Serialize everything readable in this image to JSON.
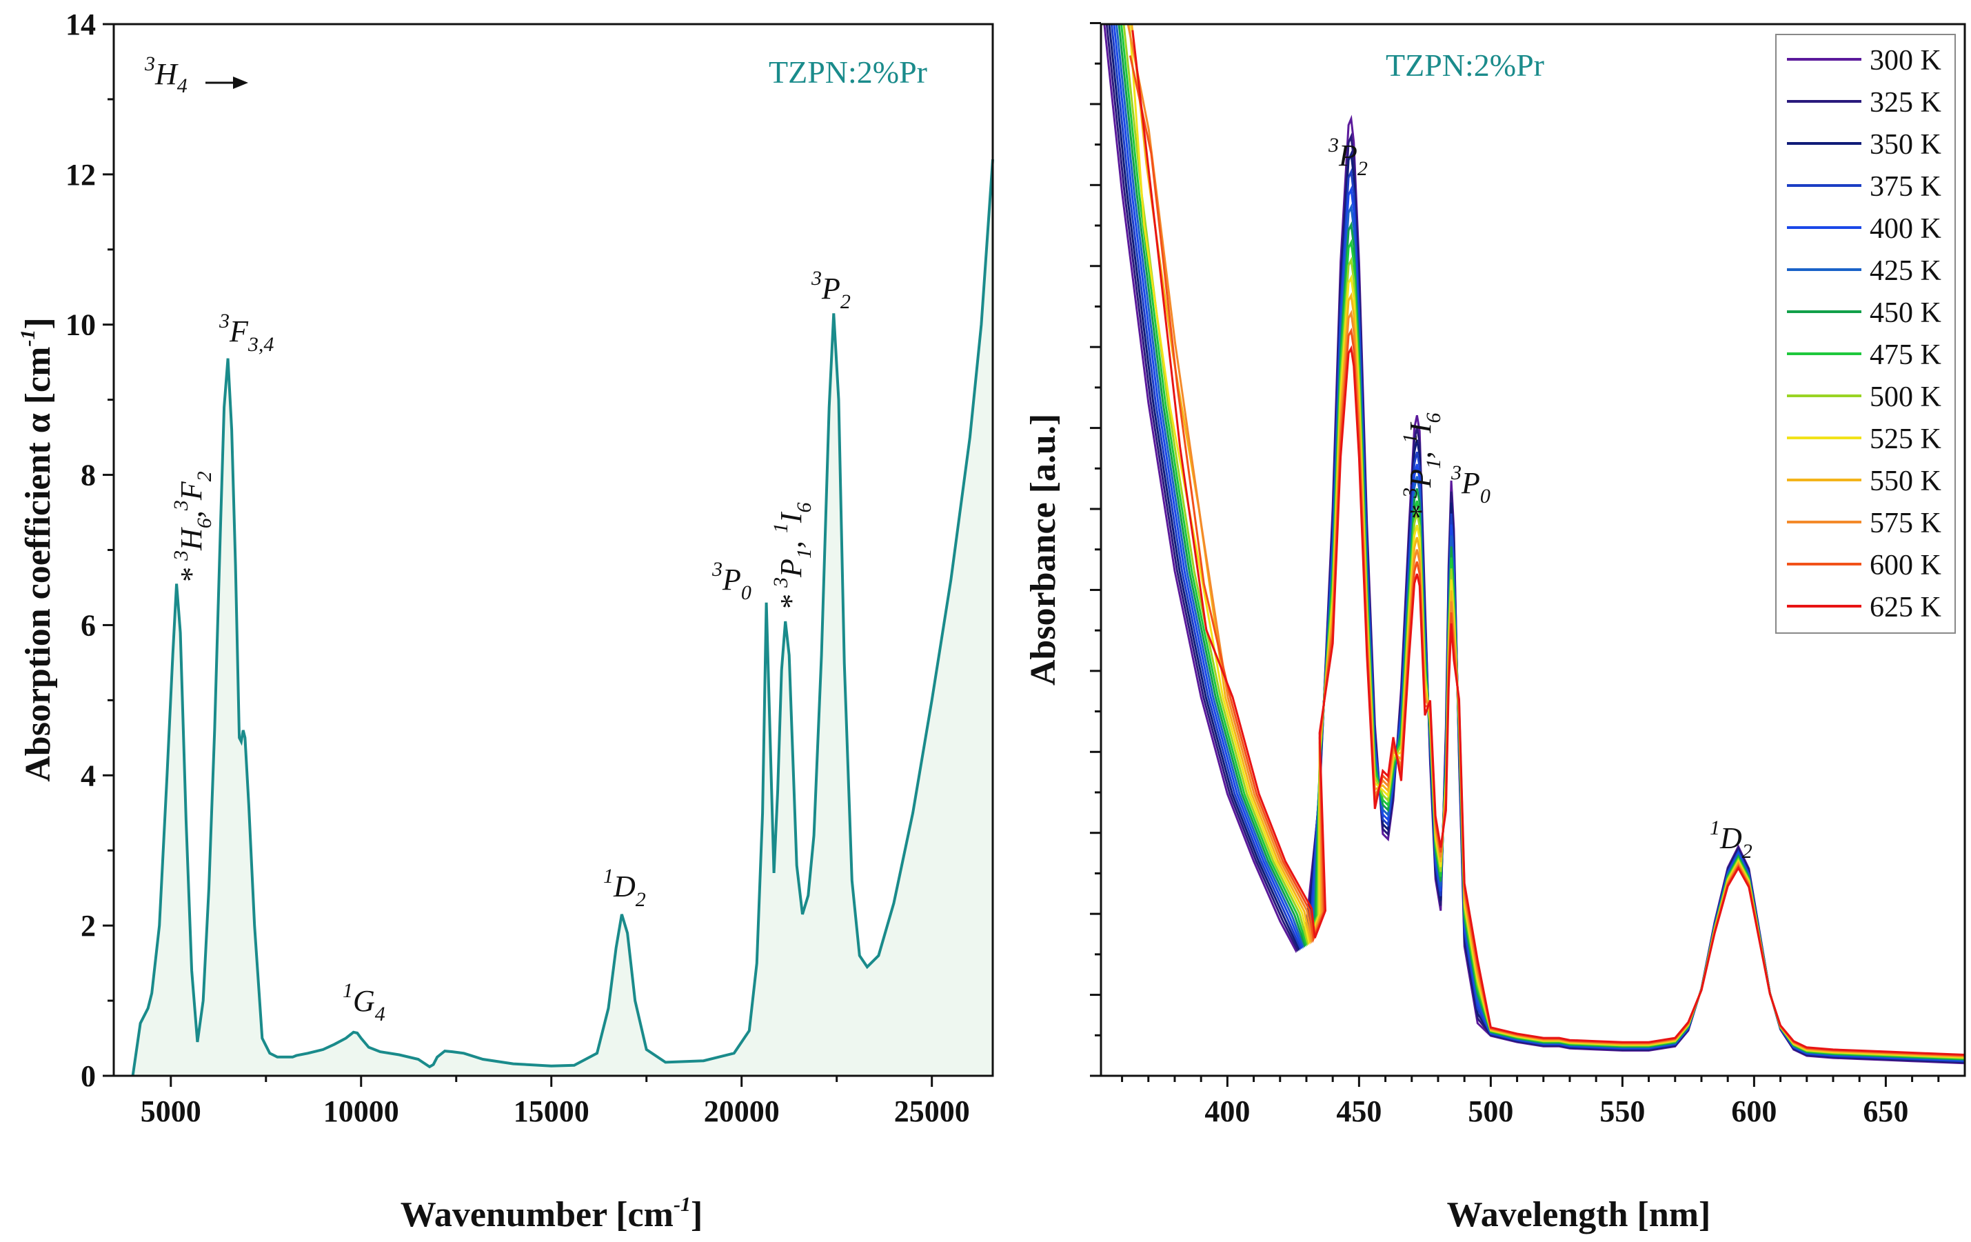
{
  "chart_data": [
    {
      "type": "area",
      "sample_label": "TZPN:2%Pr",
      "ground_state": {
        "pre": "3",
        "main": "H",
        "sub": "4"
      },
      "xlabel": {
        "main": "Wavenumber [cm",
        "sup": "-1",
        "post": "]"
      },
      "ylabel": {
        "main": "Absorption coefficient  α  [cm",
        "sup": "-1",
        "post": "]"
      },
      "xlim": [
        3500,
        26600
      ],
      "ylim": [
        0,
        14
      ],
      "xticks": [
        5000,
        10000,
        15000,
        20000,
        25000
      ],
      "xtick_labels": [
        "5000",
        "10000",
        "15000",
        "20000",
        "25000"
      ],
      "yticks": [
        0,
        2,
        4,
        6,
        8,
        10,
        12,
        14
      ],
      "ytick_labels": [
        "0",
        "2",
        "4",
        "6",
        "8",
        "10",
        "12",
        "14"
      ],
      "color": "#1a8b8b",
      "fill_color": "#eef7f0",
      "series": [
        {
          "name": "TZPN:2%Pr",
          "x": [
            4000,
            4200,
            4400,
            4500,
            4700,
            4900,
            5050,
            5150,
            5250,
            5400,
            5550,
            5700,
            5850,
            6000,
            6150,
            6300,
            6400,
            6500,
            6600,
            6700,
            6800,
            6850,
            6900,
            6950,
            7050,
            7200,
            7400,
            7600,
            7800,
            8200,
            8300,
            8600,
            9000,
            9300,
            9600,
            9800,
            9900,
            10000,
            10200,
            10500,
            11000,
            11500,
            11800,
            11900,
            12000,
            12200,
            12400,
            12700,
            13200,
            14000,
            15000,
            15600,
            16200,
            16500,
            16700,
            16850,
            17000,
            17200,
            17500,
            18000,
            19000,
            19800,
            20200,
            20400,
            20550,
            20650,
            20750,
            20850,
            20950,
            21050,
            21150,
            21250,
            21350,
            21450,
            21600,
            21750,
            21900,
            22100,
            22300,
            22420,
            22550,
            22700,
            22900,
            23100,
            23300,
            23600,
            24000,
            24500,
            25000,
            25500,
            26000,
            26300,
            26600
          ],
          "y": [
            0,
            0.7,
            0.9,
            1.1,
            2.0,
            4.0,
            5.6,
            6.55,
            5.9,
            3.4,
            1.4,
            0.45,
            1.0,
            2.5,
            4.6,
            7.2,
            8.9,
            9.55,
            8.6,
            6.8,
            4.5,
            4.45,
            4.6,
            4.5,
            3.6,
            2.0,
            0.5,
            0.3,
            0.25,
            0.25,
            0.27,
            0.3,
            0.35,
            0.42,
            0.5,
            0.58,
            0.57,
            0.5,
            0.38,
            0.32,
            0.28,
            0.22,
            0.12,
            0.15,
            0.25,
            0.33,
            0.32,
            0.3,
            0.22,
            0.16,
            0.13,
            0.14,
            0.3,
            0.9,
            1.7,
            2.15,
            1.9,
            1.0,
            0.35,
            0.18,
            0.2,
            0.3,
            0.6,
            1.5,
            3.5,
            6.3,
            4.5,
            2.7,
            3.8,
            5.4,
            6.05,
            5.6,
            4.2,
            2.8,
            2.15,
            2.4,
            3.2,
            5.6,
            8.9,
            10.15,
            9.0,
            5.5,
            2.6,
            1.6,
            1.45,
            1.6,
            2.3,
            3.5,
            5.0,
            6.6,
            8.5,
            10.0,
            12.2
          ]
        }
      ],
      "annotations": [
        {
          "marker": "*",
          "parts": [
            {
              "t": "3",
              "k": "sup"
            },
            {
              "t": "H",
              "k": "main"
            },
            {
              "t": "6",
              "k": "sub"
            },
            {
              "t": ",",
              "k": "main"
            },
            {
              "t": "3",
              "k": "sup"
            },
            {
              "t": "F",
              "k": "main"
            },
            {
              "t": "2",
              "k": "sub"
            }
          ]
        },
        {
          "marker": "",
          "parts": [
            {
              "t": "3",
              "k": "sup"
            },
            {
              "t": "F",
              "k": "main"
            },
            {
              "t": "3,4",
              "k": "sub"
            }
          ]
        },
        {
          "marker": "",
          "parts": [
            {
              "t": "1",
              "k": "sup"
            },
            {
              "t": "G",
              "k": "main"
            },
            {
              "t": "4",
              "k": "sub"
            }
          ]
        },
        {
          "marker": "",
          "parts": [
            {
              "t": "1",
              "k": "sup"
            },
            {
              "t": "D",
              "k": "main"
            },
            {
              "t": "2",
              "k": "sub"
            }
          ]
        },
        {
          "marker": "",
          "parts": [
            {
              "t": "3",
              "k": "sup"
            },
            {
              "t": "P",
              "k": "main"
            },
            {
              "t": "0",
              "k": "sub"
            }
          ]
        },
        {
          "marker": "*",
          "parts": [
            {
              "t": "3",
              "k": "sup"
            },
            {
              "t": "P",
              "k": "main"
            },
            {
              "t": "1",
              "k": "sub"
            },
            {
              "t": ", ",
              "k": "main"
            },
            {
              "t": "1",
              "k": "sup"
            },
            {
              "t": "I",
              "k": "main"
            },
            {
              "t": "6",
              "k": "sub"
            }
          ]
        },
        {
          "marker": "",
          "parts": [
            {
              "t": "3",
              "k": "sup"
            },
            {
              "t": "P",
              "k": "main"
            },
            {
              "t": "2",
              "k": "sub"
            }
          ]
        }
      ]
    },
    {
      "type": "line",
      "sample_label": "TZPN:2%Pr",
      "xlabel": "Wavelength [nm]",
      "ylabel": "Absorbance [a.u.]",
      "xlim": [
        352,
        680
      ],
      "ylim": [
        0,
        1
      ],
      "y_tick_labels_shown": false,
      "xticks": [
        400,
        450,
        500,
        550,
        600,
        650
      ],
      "xtick_labels": [
        "400",
        "450",
        "500",
        "550",
        "600",
        "650"
      ],
      "series": [
        {
          "name": "300 K",
          "color": "#5b1a9b"
        },
        {
          "name": "325 K",
          "color": "#2a1a7c"
        },
        {
          "name": "350 K",
          "color": "#101c78"
        },
        {
          "name": "375 K",
          "color": "#1c3ec4"
        },
        {
          "name": "400 K",
          "color": "#1a48e8"
        },
        {
          "name": "425 K",
          "color": "#1a62c8"
        },
        {
          "name": "450 K",
          "color": "#12a04a"
        },
        {
          "name": "475 K",
          "color": "#1ec83c"
        },
        {
          "name": "500 K",
          "color": "#9ad424"
        },
        {
          "name": "525 K",
          "color": "#f2e21a"
        },
        {
          "name": "550 K",
          "color": "#f4b41a"
        },
        {
          "name": "575 K",
          "color": "#f48a2a"
        },
        {
          "name": "600 K",
          "color": "#f2521a"
        },
        {
          "name": "625 K",
          "color": "#e81414"
        }
      ],
      "shape_x": [
        352,
        360,
        370,
        380,
        390,
        400,
        410,
        420,
        426,
        430,
        435,
        440,
        443,
        446,
        447,
        448,
        450,
        453,
        456,
        459,
        461,
        463,
        466,
        469,
        471,
        472,
        473,
        475,
        477,
        479,
        481,
        483,
        484,
        485,
        486,
        488,
        490,
        495,
        500,
        510,
        520,
        526,
        530,
        540,
        550,
        560,
        570,
        575,
        580,
        585,
        590,
        594,
        598,
        602,
        606,
        610,
        615,
        620,
        630,
        640,
        650,
        660,
        670,
        680
      ],
      "shape_300K": [
        1.03,
        0.84,
        0.64,
        0.48,
        0.36,
        0.268,
        0.204,
        0.147,
        0.119,
        0.145,
        0.266,
        0.541,
        0.774,
        0.904,
        0.91,
        0.888,
        0.773,
        0.525,
        0.334,
        0.23,
        0.225,
        0.262,
        0.369,
        0.525,
        0.616,
        0.628,
        0.613,
        0.451,
        0.297,
        0.187,
        0.157,
        0.332,
        0.485,
        0.566,
        0.52,
        0.298,
        0.123,
        0.05,
        0.038,
        0.032,
        0.028,
        0.028,
        0.026,
        0.025,
        0.024,
        0.024,
        0.028,
        0.043,
        0.083,
        0.146,
        0.198,
        0.218,
        0.197,
        0.138,
        0.079,
        0.044,
        0.025,
        0.019,
        0.017,
        0.016,
        0.015,
        0.014,
        0.013,
        0.012
      ],
      "legend_position": "top-right",
      "annotations": [
        {
          "marker": "",
          "parts": [
            {
              "t": "3",
              "k": "sup"
            },
            {
              "t": "P",
              "k": "main"
            },
            {
              "t": "2",
              "k": "sub"
            }
          ]
        },
        {
          "marker": "*",
          "parts": [
            {
              "t": "3",
              "k": "sup"
            },
            {
              "t": "P",
              "k": "main"
            },
            {
              "t": "1",
              "k": "sub"
            },
            {
              "t": ", ",
              "k": "main"
            },
            {
              "t": "1",
              "k": "sup"
            },
            {
              "t": "I",
              "k": "main"
            },
            {
              "t": "6",
              "k": "sub"
            }
          ]
        },
        {
          "marker": "",
          "parts": [
            {
              "t": "3",
              "k": "sup"
            },
            {
              "t": "P",
              "k": "main"
            },
            {
              "t": "0",
              "k": "sub"
            }
          ]
        },
        {
          "marker": "",
          "parts": [
            {
              "t": "1",
              "k": "sup"
            },
            {
              "t": "D",
              "k": "main"
            },
            {
              "t": "2",
              "k": "sub"
            }
          ]
        }
      ]
    }
  ]
}
